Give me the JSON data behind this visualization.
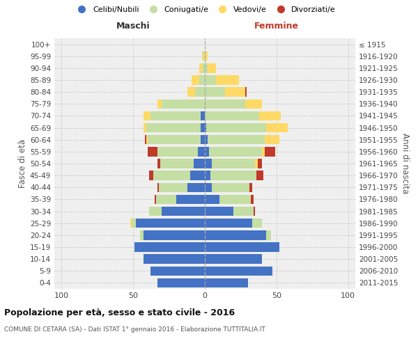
{
  "age_groups": [
    "0-4",
    "5-9",
    "10-14",
    "15-19",
    "20-24",
    "25-29",
    "30-34",
    "35-39",
    "40-44",
    "45-49",
    "50-54",
    "55-59",
    "60-64",
    "65-69",
    "70-74",
    "75-79",
    "80-84",
    "85-89",
    "90-94",
    "95-99",
    "100+"
  ],
  "birth_years": [
    "2011-2015",
    "2006-2010",
    "2001-2005",
    "1996-2000",
    "1991-1995",
    "1986-1990",
    "1981-1985",
    "1976-1980",
    "1971-1975",
    "1966-1970",
    "1961-1965",
    "1956-1960",
    "1951-1955",
    "1946-1950",
    "1941-1945",
    "1936-1940",
    "1931-1935",
    "1926-1930",
    "1921-1925",
    "1916-1920",
    "≤ 1915"
  ],
  "males_celibe": [
    33,
    38,
    43,
    49,
    43,
    48,
    30,
    20,
    12,
    10,
    8,
    5,
    3,
    3,
    3,
    0,
    0,
    0,
    0,
    0,
    0
  ],
  "males_coniugato": [
    0,
    0,
    0,
    0,
    2,
    3,
    9,
    14,
    20,
    26,
    23,
    28,
    37,
    38,
    35,
    30,
    7,
    4,
    2,
    1,
    0
  ],
  "males_vedovo": [
    0,
    0,
    0,
    0,
    0,
    1,
    0,
    0,
    0,
    0,
    0,
    0,
    1,
    2,
    5,
    3,
    5,
    5,
    2,
    1,
    0
  ],
  "males_divorziato": [
    0,
    0,
    0,
    0,
    0,
    0,
    0,
    1,
    1,
    3,
    2,
    7,
    1,
    0,
    0,
    0,
    0,
    0,
    0,
    0,
    0
  ],
  "females_nubile": [
    30,
    47,
    40,
    52,
    43,
    33,
    20,
    10,
    5,
    4,
    5,
    3,
    2,
    1,
    0,
    0,
    0,
    0,
    0,
    0,
    0
  ],
  "females_coniugata": [
    0,
    0,
    0,
    0,
    3,
    7,
    14,
    22,
    26,
    32,
    30,
    37,
    40,
    42,
    38,
    28,
    14,
    8,
    2,
    0,
    0
  ],
  "females_vedova": [
    0,
    0,
    0,
    0,
    0,
    0,
    0,
    0,
    0,
    0,
    2,
    2,
    10,
    15,
    15,
    12,
    14,
    16,
    6,
    2,
    0
  ],
  "females_divorziata": [
    0,
    0,
    0,
    0,
    0,
    0,
    1,
    2,
    2,
    5,
    3,
    7,
    0,
    0,
    0,
    0,
    1,
    0,
    0,
    0,
    0
  ],
  "color_celibe": "#4472c4",
  "color_coniugato": "#c5dea3",
  "color_vedovo": "#ffd966",
  "color_divorziato": "#c0392b",
  "xlim": 105,
  "title": "Popolazione per età, sesso e stato civile - 2016",
  "subtitle": "COMUNE DI CETARA (SA) - Dati ISTAT 1° gennaio 2016 - Elaborazione TUTTITALIA.IT",
  "ylabel_left": "Fasce di età",
  "ylabel_right": "Anni di nascita",
  "label_maschi": "Maschi",
  "label_femmine": "Femmine",
  "bg_color": "#efefef",
  "legend_labels": [
    "Celibi/Nubili",
    "Coniugati/e",
    "Vedovi/e",
    "Divorziati/e"
  ]
}
